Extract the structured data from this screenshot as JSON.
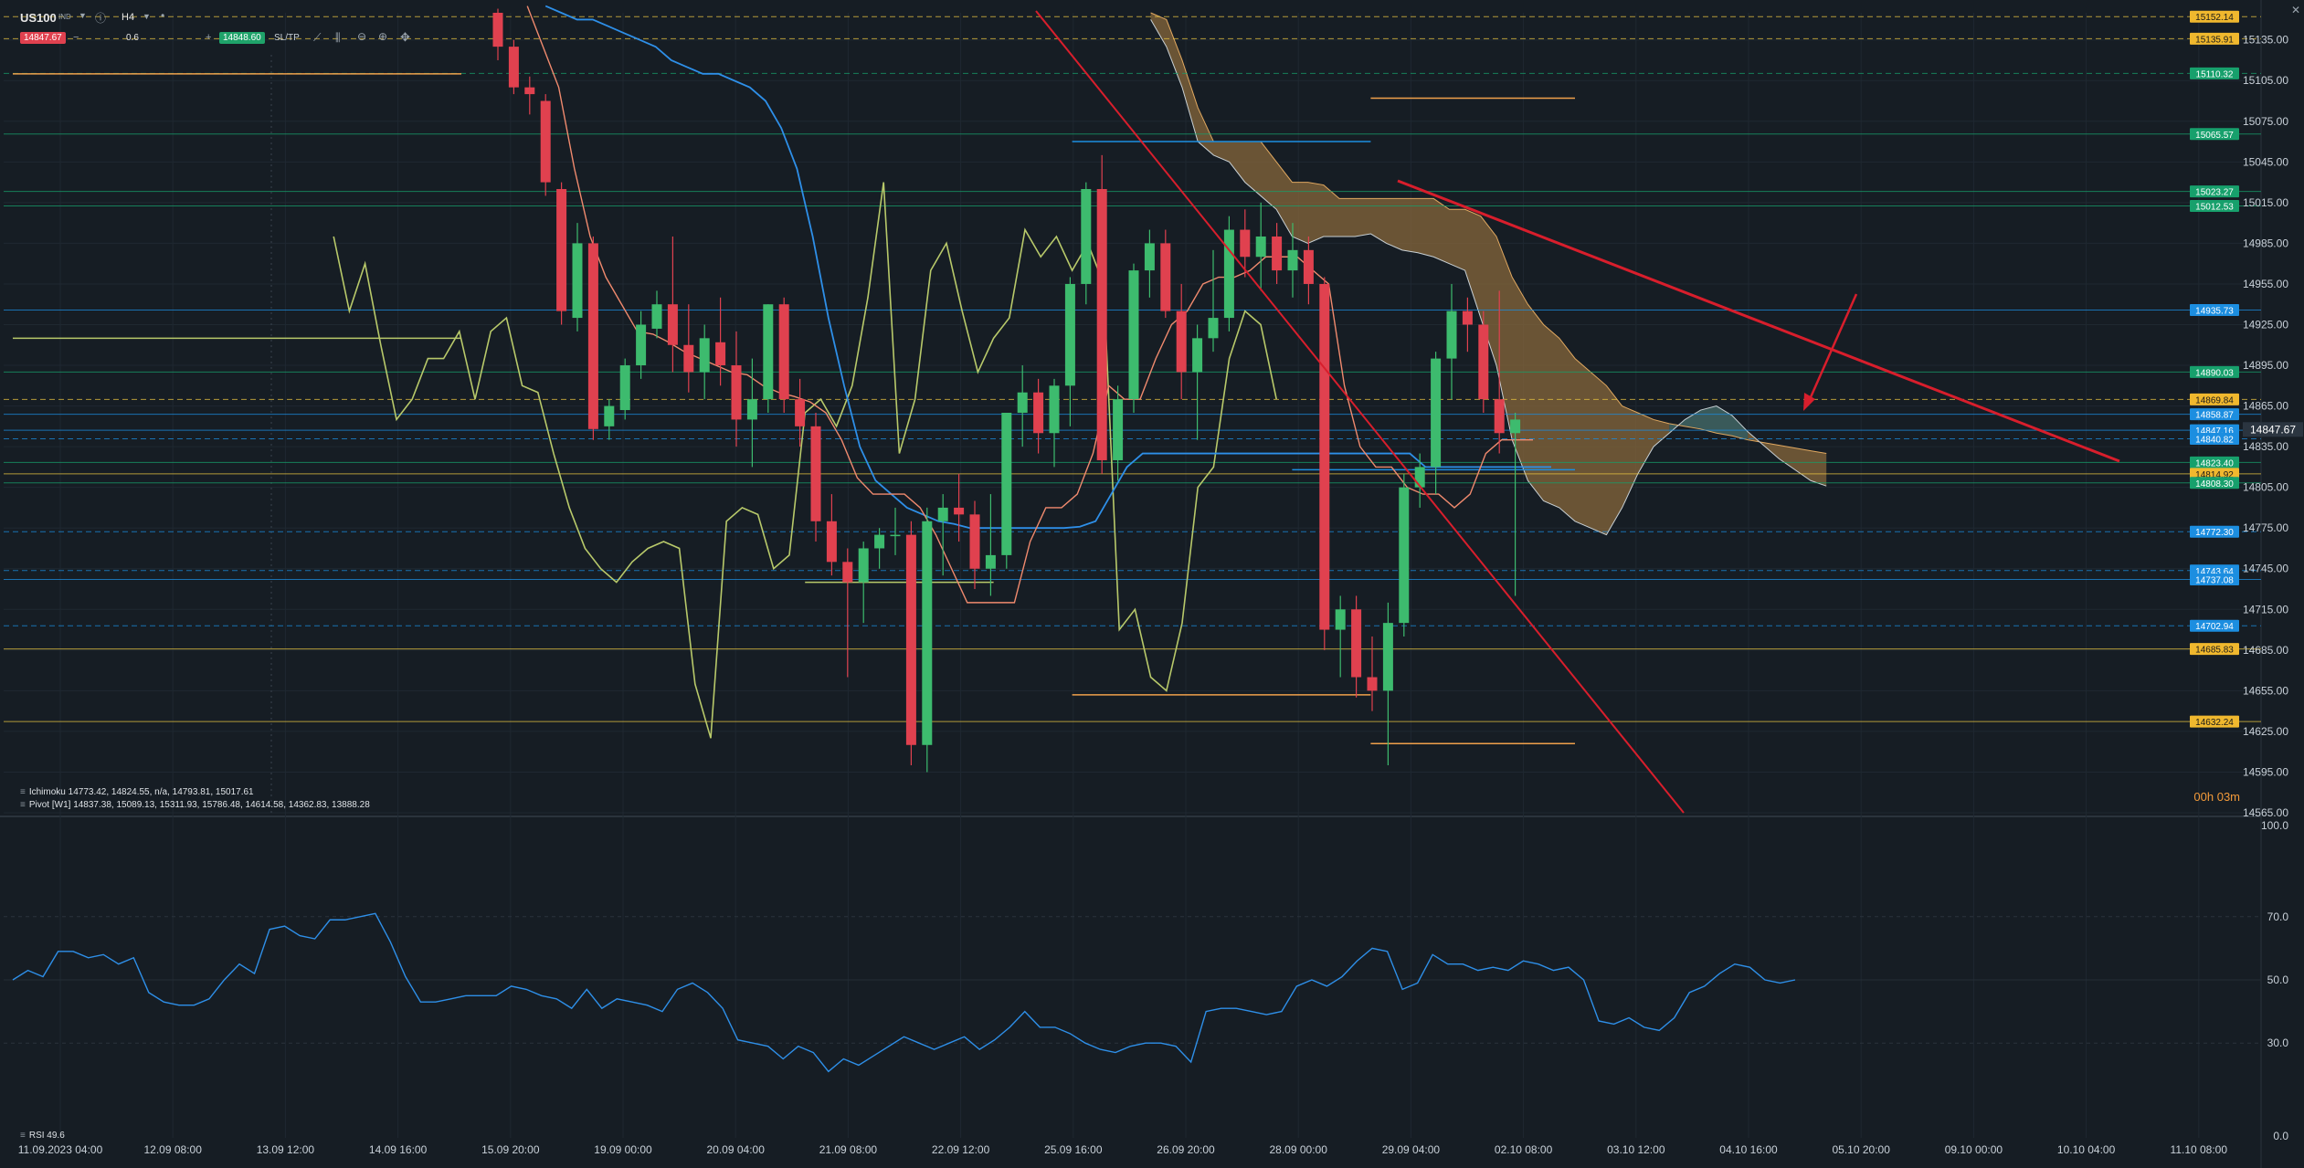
{
  "toolbar": {
    "symbol": "US100",
    "symbol_sub": "IND",
    "timeframe": "H4",
    "sell_price": "14847.67",
    "lot": "0.6",
    "buy_price": "14848.60",
    "sltp_label": "SL/TP"
  },
  "legends": {
    "ichimoku": "Ichimoku 14773.42, 14824.55, n/a, 14793.81, 15017.61",
    "pivot": "Pivot [W1] 14837.38, 15089.13, 15311.93, 15786.48, 14614.58, 14362.83, 13888.28",
    "rsi": "RSI 49.6"
  },
  "timer": "00h 03m",
  "colors": {
    "background": "#161d24",
    "bull": "#3dbb6e",
    "bear": "#e0414f",
    "tenkan": "#f08a6e",
    "kijun": "#2e8fe8",
    "chikou": "#b8c96a",
    "cloud": "#8a6a3c",
    "trendline": "#d81e2c",
    "rsi_line": "#2e8fe8",
    "orange_level": "#f0a04b",
    "yellow_level": "#e8c440",
    "green_tag": "#17a06c",
    "blue_tag": "#1c8ee0"
  },
  "chart_data": {
    "type": "candlestick",
    "symbol": "US100",
    "timeframe": "H4",
    "ylim": [
      14565,
      15155
    ],
    "y_ticks": [
      15135,
      15105,
      15075,
      15045,
      15015,
      14985,
      14955,
      14925,
      14895,
      14865,
      14835,
      14805,
      14775,
      14745,
      14715,
      14685,
      14655,
      14625,
      14595,
      14565
    ],
    "x_labels": [
      "11.09.2023 04:00",
      "12.09 08:00",
      "13.09 12:00",
      "14.09 16:00",
      "15.09 20:00",
      "19.09 00:00",
      "20.09 04:00",
      "21.09 08:00",
      "22.09 12:00",
      "25.09 16:00",
      "26.09 20:00",
      "28.09 00:00",
      "29.09 04:00",
      "02.10 08:00",
      "03.10 12:00",
      "04.10 16:00",
      "05.10 20:00",
      "09.10 00:00",
      "10.10 04:00",
      "11.10 08:00"
    ],
    "current_price": 14847.67,
    "candles": [
      {
        "o": 15155,
        "h": 15158,
        "l": 15120,
        "c": 15130
      },
      {
        "o": 15130,
        "h": 15135,
        "l": 15095,
        "c": 15100
      },
      {
        "o": 15100,
        "h": 15108,
        "l": 15080,
        "c": 15095
      },
      {
        "o": 15090,
        "h": 15095,
        "l": 15020,
        "c": 15030
      },
      {
        "o": 15025,
        "h": 15030,
        "l": 14925,
        "c": 14935
      },
      {
        "o": 14930,
        "h": 15000,
        "l": 14920,
        "c": 14985
      },
      {
        "o": 14985,
        "h": 14990,
        "l": 14840,
        "c": 14848
      },
      {
        "o": 14850,
        "h": 14870,
        "l": 14840,
        "c": 14865
      },
      {
        "o": 14862,
        "h": 14900,
        "l": 14855,
        "c": 14895
      },
      {
        "o": 14895,
        "h": 14935,
        "l": 14885,
        "c": 14925
      },
      {
        "o": 14922,
        "h": 14950,
        "l": 14915,
        "c": 14940
      },
      {
        "o": 14940,
        "h": 14990,
        "l": 14890,
        "c": 14910
      },
      {
        "o": 14910,
        "h": 14940,
        "l": 14875,
        "c": 14890
      },
      {
        "o": 14890,
        "h": 14925,
        "l": 14870,
        "c": 14915
      },
      {
        "o": 14912,
        "h": 14945,
        "l": 14880,
        "c": 14895
      },
      {
        "o": 14895,
        "h": 14920,
        "l": 14835,
        "c": 14855
      },
      {
        "o": 14855,
        "h": 14900,
        "l": 14820,
        "c": 14870
      },
      {
        "o": 14870,
        "h": 14940,
        "l": 14860,
        "c": 14940
      },
      {
        "o": 14940,
        "h": 14945,
        "l": 14860,
        "c": 14870
      },
      {
        "o": 14870,
        "h": 14885,
        "l": 14835,
        "c": 14850
      },
      {
        "o": 14850,
        "h": 14860,
        "l": 14765,
        "c": 14780
      },
      {
        "o": 14780,
        "h": 14800,
        "l": 14740,
        "c": 14750
      },
      {
        "o": 14750,
        "h": 14760,
        "l": 14665,
        "c": 14735
      },
      {
        "o": 14735,
        "h": 14765,
        "l": 14705,
        "c": 14760
      },
      {
        "o": 14760,
        "h": 14775,
        "l": 14745,
        "c": 14770
      },
      {
        "o": 14770,
        "h": 14790,
        "l": 14755,
        "c": 14770
      },
      {
        "o": 14770,
        "h": 14780,
        "l": 14600,
        "c": 14615
      },
      {
        "o": 14615,
        "h": 14790,
        "l": 14595,
        "c": 14780
      },
      {
        "o": 14780,
        "h": 14800,
        "l": 14740,
        "c": 14790
      },
      {
        "o": 14790,
        "h": 14815,
        "l": 14765,
        "c": 14785
      },
      {
        "o": 14785,
        "h": 14795,
        "l": 14730,
        "c": 14745
      },
      {
        "o": 14745,
        "h": 14800,
        "l": 14725,
        "c": 14755
      },
      {
        "o": 14755,
        "h": 14860,
        "l": 14745,
        "c": 14860
      },
      {
        "o": 14860,
        "h": 14895,
        "l": 14835,
        "c": 14875
      },
      {
        "o": 14875,
        "h": 14885,
        "l": 14830,
        "c": 14845
      },
      {
        "o": 14845,
        "h": 14885,
        "l": 14820,
        "c": 14880
      },
      {
        "o": 14880,
        "h": 14960,
        "l": 14850,
        "c": 14955
      },
      {
        "o": 14955,
        "h": 15030,
        "l": 14940,
        "c": 15025
      },
      {
        "o": 15025,
        "h": 15050,
        "l": 14815,
        "c": 14825
      },
      {
        "o": 14825,
        "h": 14880,
        "l": 14810,
        "c": 14870
      },
      {
        "o": 14870,
        "h": 14970,
        "l": 14860,
        "c": 14965
      },
      {
        "o": 14965,
        "h": 14995,
        "l": 14945,
        "c": 14985
      },
      {
        "o": 14985,
        "h": 14995,
        "l": 14930,
        "c": 14935
      },
      {
        "o": 14935,
        "h": 14955,
        "l": 14870,
        "c": 14890
      },
      {
        "o": 14890,
        "h": 14925,
        "l": 14840,
        "c": 14915
      },
      {
        "o": 14915,
        "h": 14980,
        "l": 14905,
        "c": 14930
      },
      {
        "o": 14930,
        "h": 15005,
        "l": 14920,
        "c": 14995
      },
      {
        "o": 14995,
        "h": 15010,
        "l": 14960,
        "c": 14975
      },
      {
        "o": 14975,
        "h": 15015,
        "l": 14950,
        "c": 14990
      },
      {
        "o": 14990,
        "h": 15000,
        "l": 14955,
        "c": 14965
      },
      {
        "o": 14965,
        "h": 15000,
        "l": 14945,
        "c": 14980
      },
      {
        "o": 14980,
        "h": 14990,
        "l": 14940,
        "c": 14955
      },
      {
        "o": 14955,
        "h": 14960,
        "l": 14685,
        "c": 14700
      },
      {
        "o": 14700,
        "h": 14725,
        "l": 14665,
        "c": 14715
      },
      {
        "o": 14715,
        "h": 14725,
        "l": 14650,
        "c": 14665
      },
      {
        "o": 14665,
        "h": 14695,
        "l": 14640,
        "c": 14655
      },
      {
        "o": 14655,
        "h": 14720,
        "l": 14600,
        "c": 14705
      },
      {
        "o": 14705,
        "h": 14815,
        "l": 14695,
        "c": 14805
      },
      {
        "o": 14805,
        "h": 14830,
        "l": 14790,
        "c": 14820
      },
      {
        "o": 14820,
        "h": 14905,
        "l": 14800,
        "c": 14900
      },
      {
        "o": 14900,
        "h": 14955,
        "l": 14870,
        "c": 14935
      },
      {
        "o": 14935,
        "h": 14945,
        "l": 14905,
        "c": 14925
      },
      {
        "o": 14925,
        "h": 14935,
        "l": 14860,
        "c": 14870
      },
      {
        "o": 14870,
        "h": 14950,
        "l": 14830,
        "c": 14845
      },
      {
        "o": 14845,
        "h": 14860,
        "l": 14725,
        "c": 14855
      }
    ],
    "ichimoku": {
      "tenkan": [
        15160,
        15130,
        15100,
        15040,
        14990,
        14960,
        14940,
        14920,
        14918,
        14912,
        14905,
        14900,
        14895,
        14890,
        14888,
        14880,
        14875,
        14872,
        14868,
        14860,
        14840,
        14812,
        14800,
        14800,
        14800,
        14790,
        14770,
        14745,
        14720,
        14720,
        14720,
        14720,
        14765,
        14790,
        14790,
        14800,
        14830,
        14880,
        14870,
        14870,
        14900,
        14925,
        14935,
        14955,
        14960,
        14960,
        14965,
        14975,
        14975,
        14975,
        14965,
        14955,
        14880,
        14835,
        14820,
        14820,
        14805,
        14800,
        14800,
        14790,
        14800,
        14830,
        14840,
        14840,
        14840
      ],
      "kijun": [
        15160,
        15155,
        15150,
        15150,
        15145,
        15140,
        15135,
        15130,
        15120,
        15115,
        15110,
        15110,
        15105,
        15100,
        15090,
        15070,
        15040,
        14990,
        14930,
        14880,
        14835,
        14810,
        14800,
        14790,
        14785,
        14780,
        14778,
        14775,
        14775,
        14775,
        14775,
        14775,
        14775,
        14775,
        14776,
        14780,
        14800,
        14820,
        14830,
        14830,
        14830,
        14830,
        14830,
        14830,
        14830,
        14830,
        14830,
        14830,
        14830,
        14830,
        14830,
        14830,
        14830,
        14830,
        14830,
        14830,
        14820,
        14820,
        14820,
        14820,
        14820,
        14820,
        14820,
        14820,
        14820
      ],
      "chikou": [
        15160,
        15110,
        15105,
        15060,
        14990,
        14935,
        14970,
        14910,
        14855,
        14870,
        14900,
        14900,
        14920,
        14870,
        14920,
        14930,
        14880,
        14875,
        14830,
        14790,
        14760,
        14745,
        14735,
        14750,
        14760,
        14765,
        14760,
        14660,
        14620,
        14780,
        14790,
        14785,
        14745,
        14755,
        14860,
        14870,
        14850,
        14880,
        14945,
        15030,
        14830,
        14870,
        14965,
        14985,
        14935,
        14890,
        14915,
        14930,
        14995,
        14975,
        14990,
        14965,
        14985,
        14955,
        14700,
        14715,
        14665,
        14655,
        14705,
        14805,
        14820,
        14900,
        14935,
        14925,
        14870
      ],
      "chikou_offset": -26,
      "cloud_upper": [
        15155,
        15150,
        15120,
        15085,
        15060,
        15060,
        15060,
        15060,
        15045,
        15030,
        15030,
        15028,
        15018,
        15018,
        15018,
        15018,
        15018,
        15018,
        15018,
        15010,
        15010,
        15005,
        14990,
        14960,
        14940,
        14925,
        14915,
        14900,
        14890,
        14880,
        14865,
        14860,
        14855,
        14852,
        14850,
        14848,
        14845,
        14843,
        14840,
        14838,
        14836,
        14834,
        14832,
        14830
      ],
      "cloud_lower": [
        15150,
        15130,
        15100,
        15060,
        15050,
        15045,
        15030,
        15020,
        15010,
        14990,
        14985,
        14990,
        14990,
        14990,
        14992,
        14985,
        14980,
        14978,
        14975,
        14970,
        14965,
        14930,
        14895,
        14840,
        14810,
        14795,
        14790,
        14780,
        14775,
        14770,
        14790,
        14815,
        14835,
        14845,
        14855,
        14862,
        14865,
        14858,
        14846,
        14836,
        14826,
        14818,
        14810,
        14806
      ],
      "cloud_start_index": 43
    },
    "levels": [
      {
        "value": 15152.14,
        "label": "15152.14",
        "color": "#e8c440",
        "style": "dashed"
      },
      {
        "value": 15135.91,
        "label": "15135.91",
        "color": "#e8c440",
        "style": "dashed"
      },
      {
        "value": 15110.32,
        "label": "15110.32",
        "color": "#17a06c",
        "style": "dashed"
      },
      {
        "value": 15065.57,
        "label": "15065.57",
        "color": "#17a06c",
        "style": "solid"
      },
      {
        "value": 15023.27,
        "label": "15023.27",
        "color": "#17a06c",
        "style": "solid"
      },
      {
        "value": 15012.53,
        "label": "15012.53",
        "color": "#17a06c",
        "style": "solid"
      },
      {
        "value": 14935.73,
        "label": "14935.73",
        "color": "#1c8ee0",
        "style": "solid"
      },
      {
        "value": 14890.03,
        "label": "14890.03",
        "color": "#17a06c",
        "style": "solid"
      },
      {
        "value": 14869.84,
        "label": "14869.84",
        "color": "#e8c440",
        "style": "dashed"
      },
      {
        "value": 14858.87,
        "label": "14858.87",
        "color": "#1c8ee0",
        "style": "solid"
      },
      {
        "value": 14847.16,
        "label": "14847.16",
        "color": "#1c8ee0",
        "style": "solid"
      },
      {
        "value": 14840.82,
        "label": "14840.82",
        "color": "#1c8ee0",
        "style": "dashed"
      },
      {
        "value": 14823.4,
        "label": "14823.40",
        "color": "#17a06c",
        "style": "solid"
      },
      {
        "value": 14814.92,
        "label": "14814.92",
        "color": "#e8c440",
        "style": "solid"
      },
      {
        "value": 14808.3,
        "label": "14808.30",
        "color": "#17a06c",
        "style": "solid"
      },
      {
        "value": 14772.3,
        "label": "14772.30",
        "color": "#1c8ee0",
        "style": "dashed"
      },
      {
        "value": 14743.64,
        "label": "14743.64",
        "color": "#1c8ee0",
        "style": "dashed"
      },
      {
        "value": 14737.08,
        "label": "14737.08",
        "color": "#1c8ee0",
        "style": "solid"
      },
      {
        "value": 14702.94,
        "label": "14702.94",
        "color": "#1c8ee0",
        "style": "dashed"
      },
      {
        "value": 14685.83,
        "label": "14685.83",
        "color": "#e8c440",
        "style": "solid"
      },
      {
        "value": 14632.24,
        "label": "14632.24",
        "color": "#e8c440",
        "style": "solid"
      }
    ],
    "segments": [
      {
        "from_index": 0,
        "to_index": 18,
        "value": 15110,
        "color": "#f0a04b"
      },
      {
        "from_index": 0,
        "to_index": 18,
        "value": 14915,
        "color": "#b8c96a"
      },
      {
        "from_index": 21,
        "to_index": 33,
        "value": 14735,
        "color": "#b8c96a"
      },
      {
        "from_index": 38,
        "to_index": 57,
        "value": 15060,
        "color": "#1c8ee0"
      },
      {
        "from_index": 38,
        "to_index": 57,
        "value": 14652,
        "color": "#f0a04b"
      },
      {
        "from_index": 57,
        "to_index": 70,
        "value": 15092,
        "color": "#f0a04b"
      },
      {
        "from_index": 57,
        "to_index": 70,
        "value": 14616,
        "color": "#f0a04b"
      },
      {
        "from_index": 52,
        "to_index": 70,
        "value": 14818,
        "color": "#1c8ee0"
      }
    ],
    "trendlines": [
      {
        "from": {
          "index": 38,
          "value": 15155
        },
        "to": {
          "index": 66,
          "value": 14565
        },
        "color": "#d81e2c"
      },
      {
        "from": {
          "index": 53,
          "value": 15036
        },
        "to": {
          "index": 83,
          "value": 14820
        },
        "color": "#d81e2c"
      }
    ],
    "rsi": {
      "label": "RSI 49.6",
      "ylim": [
        0,
        100
      ],
      "ticks": [
        100,
        70,
        50,
        30,
        0
      ],
      "values": [
        50,
        53,
        51,
        59,
        59,
        57,
        58,
        55,
        57,
        46,
        43,
        42,
        42,
        44,
        50,
        55,
        52,
        66,
        67,
        64,
        63,
        69,
        69,
        70,
        71,
        62,
        51,
        43,
        43,
        44,
        45,
        45,
        45,
        48,
        47,
        45,
        44,
        41,
        47,
        41,
        44,
        43,
        42,
        40,
        47,
        49,
        46,
        41,
        31,
        30,
        29,
        25,
        29,
        27,
        21,
        25,
        23,
        26,
        29,
        32,
        30,
        28,
        30,
        32,
        28,
        31,
        35,
        40,
        35,
        35,
        33,
        30,
        28,
        27,
        29,
        30,
        30,
        29,
        24,
        40,
        41,
        41,
        40,
        39,
        40,
        48,
        50,
        48,
        51,
        56,
        60,
        59,
        47,
        49,
        58,
        55,
        55,
        53,
        54,
        53,
        56,
        55,
        53,
        54,
        50,
        37,
        36,
        38,
        35,
        34,
        38,
        46,
        48,
        52,
        55,
        54,
        50,
        49,
        50
      ]
    }
  }
}
